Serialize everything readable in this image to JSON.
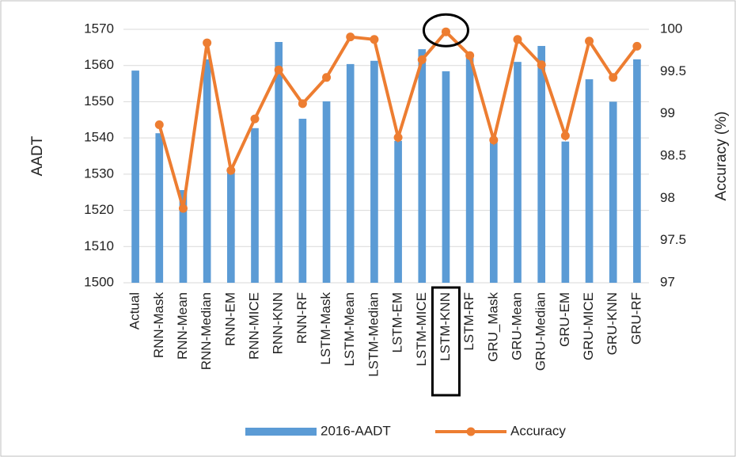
{
  "chart_data": {
    "type": "bar_line",
    "categories": [
      "Actual",
      "RNN-Mask",
      "RNN-Mean",
      "RNN-Median",
      "RNN-EM",
      "RNN-MICE",
      "RNN-KNN",
      "RNN-RF",
      "LSTM-Mask",
      "LSTM-Mean",
      "LSTM-Median",
      "LSTM-EM",
      "LSTM-MICE",
      "LSTM-KNN",
      "LSTM-RF",
      "GRU_Mask",
      "GRU-Mean",
      "GRU-Median",
      "GRU-EM",
      "GRU-MICE",
      "GRU-KNN",
      "GRU-RF"
    ],
    "series": [
      {
        "name": "2016-AADT",
        "color": "#5b9bd5",
        "kind": "bar",
        "values": [
          1558.6,
          1541.3,
          1525.6,
          1561.7,
          1531.5,
          1542.7,
          1566.5,
          1545.3,
          1550.1,
          1560.4,
          1561.3,
          1539.2,
          1564.5,
          1558.4,
          1562.3,
          1539.2,
          1561,
          1565.4,
          1539,
          1556.2,
          1550,
          1561.7
        ]
      },
      {
        "name": "Accuracy",
        "color": "#ed7d31",
        "kind": "line",
        "axis": "y2",
        "values": [
          null,
          98.87,
          97.88,
          99.84,
          98.33,
          98.94,
          99.52,
          99.12,
          99.43,
          99.91,
          99.88,
          98.72,
          99.64,
          99.97,
          99.69,
          98.69,
          99.88,
          99.58,
          98.74,
          99.86,
          99.43,
          99.8
        ]
      }
    ],
    "y_label": "AADT",
    "y2_label": "Accuracy (%)",
    "ylim": [
      1500,
      1570
    ],
    "yticks": [
      1500,
      1510,
      1520,
      1530,
      1540,
      1550,
      1560,
      1570
    ],
    "y2lim": [
      97,
      100
    ],
    "y2ticks": [
      97,
      97.5,
      98,
      98.5,
      99,
      99.5,
      100
    ],
    "grid": true,
    "legend": "bottom"
  }
}
